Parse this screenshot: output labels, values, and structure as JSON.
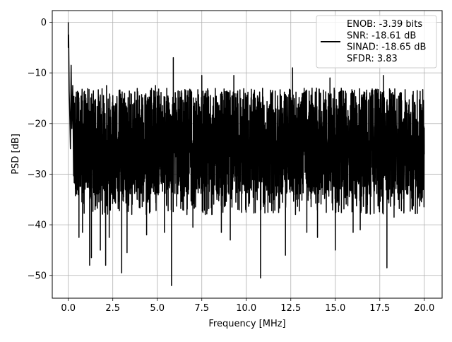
{
  "chart_data": {
    "type": "line",
    "title": "",
    "xlabel": "Frequency [MHz]",
    "ylabel": "PSD [dB]",
    "xlim": [
      -0.9,
      21.0
    ],
    "ylim": [
      -54.5,
      2.3
    ],
    "xticks": [
      0.0,
      2.5,
      5.0,
      7.5,
      10.0,
      12.5,
      15.0,
      17.5,
      20.0
    ],
    "xtick_labels": [
      "0.0",
      "2.5",
      "5.0",
      "7.5",
      "10.0",
      "12.5",
      "15.0",
      "17.5",
      "20.0"
    ],
    "yticks": [
      0,
      -10,
      -20,
      -30,
      -40,
      -50
    ],
    "ytick_labels": [
      "0",
      "−10",
      "−20",
      "−30",
      "−40",
      "−50"
    ],
    "grid": true,
    "legend_position": "top-right",
    "series": [
      {
        "name": "ENOB: -3.39 bits\nSNR: -18.61 dB\nSINAD: -18.65 dB\nSFDR: 3.83",
        "color": "#000000",
        "x_range": [
          0,
          20
        ],
        "noise_floor_db": -22,
        "noise_upper_envelope_db": -15,
        "noise_lower_typical_db": -34,
        "peak": {
          "x": 0.0,
          "y": 0.0
        },
        "near_dc_points": [
          {
            "x": 0.0,
            "y": -5.0
          },
          {
            "x": 0.02,
            "y": -2.5
          },
          {
            "x": 0.05,
            "y": -13.5
          },
          {
            "x": 0.09,
            "y": -19.5
          },
          {
            "x": 0.12,
            "y": -25.0
          },
          {
            "x": 0.16,
            "y": -8.5
          },
          {
            "x": 0.2,
            "y": -21.0
          },
          {
            "x": 0.25,
            "y": -12.5
          }
        ],
        "notable_maxima": [
          {
            "x": 2.15,
            "y": -12.5
          },
          {
            "x": 4.9,
            "y": -12.5
          },
          {
            "x": 5.9,
            "y": -7.0
          },
          {
            "x": 7.5,
            "y": -10.5
          },
          {
            "x": 9.3,
            "y": -10.5
          },
          {
            "x": 12.6,
            "y": -9.0
          },
          {
            "x": 14.7,
            "y": -11.0
          },
          {
            "x": 17.7,
            "y": -10.5
          }
        ],
        "notable_minima": [
          {
            "x": 0.6,
            "y": -42.5
          },
          {
            "x": 0.8,
            "y": -41.5
          },
          {
            "x": 1.2,
            "y": -48.0
          },
          {
            "x": 1.3,
            "y": -46.5
          },
          {
            "x": 1.8,
            "y": -45.0
          },
          {
            "x": 2.1,
            "y": -48.0
          },
          {
            "x": 2.3,
            "y": -42.5
          },
          {
            "x": 3.0,
            "y": -49.5
          },
          {
            "x": 3.3,
            "y": -45.5
          },
          {
            "x": 4.4,
            "y": -42.0
          },
          {
            "x": 5.4,
            "y": -41.5
          },
          {
            "x": 5.8,
            "y": -52.0
          },
          {
            "x": 7.0,
            "y": -40.5
          },
          {
            "x": 8.6,
            "y": -41.5
          },
          {
            "x": 9.1,
            "y": -43.0
          },
          {
            "x": 10.8,
            "y": -50.5
          },
          {
            "x": 12.2,
            "y": -46.0
          },
          {
            "x": 13.4,
            "y": -41.5
          },
          {
            "x": 14.0,
            "y": -42.5
          },
          {
            "x": 15.0,
            "y": -45.0
          },
          {
            "x": 16.0,
            "y": -41.5
          },
          {
            "x": 16.4,
            "y": -41.0
          },
          {
            "x": 17.9,
            "y": -48.5
          },
          {
            "x": 18.3,
            "y": -38.5
          }
        ]
      }
    ]
  }
}
